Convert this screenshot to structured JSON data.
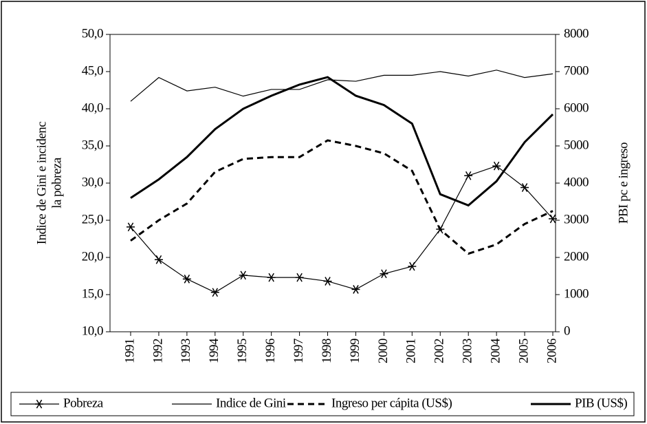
{
  "chart_data": {
    "type": "line",
    "ylabel": [
      "Indice de Gini e incidenc",
      "la pobreza"
    ],
    "y2label": "PBI pc e ingreso",
    "categories": [
      "1991",
      "1992",
      "1993",
      "1994",
      "1995",
      "1996",
      "1997",
      "1998",
      "1999",
      "2000",
      "2001",
      "2002",
      "2003",
      "2004",
      "2005",
      "2006"
    ],
    "series": [
      {
        "name": "Pobreza",
        "color": "#000000",
        "style": "star",
        "axis": "y",
        "values": [
          24.1,
          19.7,
          17.1,
          15.3,
          17.6,
          17.3,
          17.3,
          16.8,
          15.7,
          17.8,
          18.8,
          23.8,
          31.0,
          32.3,
          29.4,
          25.2
        ]
      },
      {
        "name": "Indice de Gini",
        "color": "#000000",
        "style": "thin",
        "axis": "y",
        "values": [
          41.0,
          44.2,
          42.4,
          42.9,
          41.7,
          42.6,
          42.6,
          43.9,
          43.7,
          44.5,
          44.5,
          45.0,
          44.4,
          45.2,
          44.2,
          44.7
        ]
      },
      {
        "name": "Ingreso per cápita (US$)",
        "color": "#000000",
        "style": "dashed",
        "axis": "y2",
        "values": [
          2450,
          3000,
          3450,
          4300,
          4650,
          4700,
          4700,
          5150,
          5000,
          4800,
          4330,
          2750,
          2100,
          2350,
          2900,
          3250
        ]
      },
      {
        "name": "PIB (US$)",
        "color": "#000000",
        "style": "thick",
        "axis": "y2",
        "values": [
          3600,
          4100,
          4700,
          5450,
          6000,
          6350,
          6650,
          6850,
          6350,
          6100,
          5600,
          3700,
          3400,
          4050,
          5100,
          5850
        ]
      }
    ],
    "ylim": [
      10,
      50
    ],
    "yticks": [
      {
        "value": 10,
        "label": "10,0"
      },
      {
        "value": 15,
        "label": "15,0"
      },
      {
        "value": 20,
        "label": "20,0"
      },
      {
        "value": 25,
        "label": "25,0"
      },
      {
        "value": 30,
        "label": "30,0"
      },
      {
        "value": 35,
        "label": "35,0"
      },
      {
        "value": 40,
        "label": "40,0"
      },
      {
        "value": 45,
        "label": "45,0"
      },
      {
        "value": 50,
        "label": "50,0"
      }
    ],
    "y2lim": [
      0,
      8000
    ],
    "y2ticks": [
      0,
      1000,
      2000,
      3000,
      4000,
      5000,
      6000,
      7000,
      8000
    ],
    "legend": "bottom"
  }
}
